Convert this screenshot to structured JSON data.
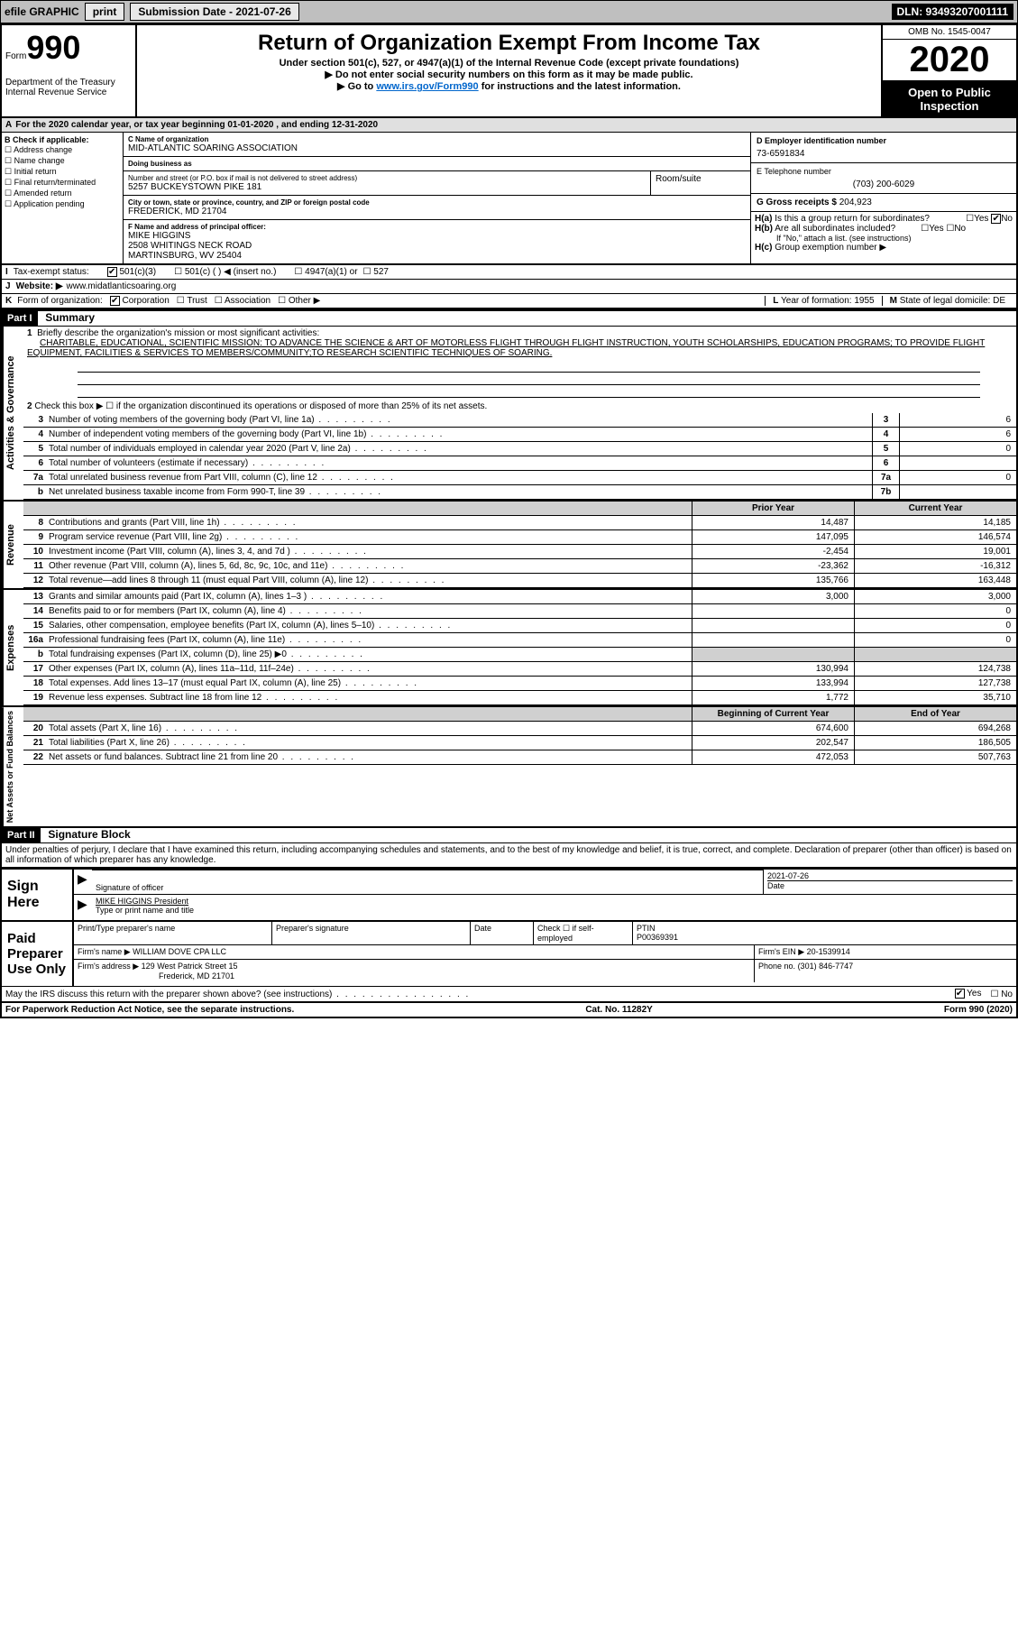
{
  "topbar": {
    "efile": "efile GRAPHIC",
    "print": "print",
    "sub_label": "Submission Date - 2021-07-26",
    "dln": "DLN: 93493207001111"
  },
  "header": {
    "form_word": "Form",
    "form_num": "990",
    "dept": "Department of the Treasury\nInternal Revenue Service",
    "title": "Return of Organization Exempt From Income Tax",
    "sub1": "Under section 501(c), 527, or 4947(a)(1) of the Internal Revenue Code (except private foundations)",
    "sub2": "▶ Do not enter social security numbers on this form as it may be made public.",
    "sub3_pre": "▶ Go to ",
    "sub3_link": "www.irs.gov/Form990",
    "sub3_post": " for instructions and the latest information.",
    "omb": "OMB No. 1545-0047",
    "year": "2020",
    "public1": "Open to Public",
    "public2": "Inspection"
  },
  "rowA": {
    "pre": "A",
    "txt": "For the 2020 calendar year, or tax year beginning 01-01-2020   , and ending 12-31-2020"
  },
  "colB": {
    "hdr": "B Check if applicable:",
    "c1": "Address change",
    "c2": "Name change",
    "c3": "Initial return",
    "c4": "Final return/terminated",
    "c5": "Amended return",
    "c6": "Application pending"
  },
  "colC": {
    "name_lbl": "C Name of organization",
    "name": "MID-ATLANTIC SOARING ASSOCIATION",
    "dba_lbl": "Doing business as",
    "dba": "",
    "addr_lbl": "Number and street (or P.O. box if mail is not delivered to street address)",
    "addr": "5257 BUCKEYSTOWN PIKE 181",
    "room_lbl": "Room/suite",
    "city_lbl": "City or town, state or province, country, and ZIP or foreign postal code",
    "city": "FREDERICK, MD  21704",
    "f_lbl": "F Name and address of principal officer:",
    "f_name": "MIKE HIGGINS",
    "f_addr1": "2508 WHITINGS NECK ROAD",
    "f_addr2": "MARTINSBURG, WV  25404"
  },
  "colD": {
    "d_lbl": "D Employer identification number",
    "d_val": "73-6591834",
    "e_lbl": "E Telephone number",
    "e_val": "(703) 200-6029",
    "g_lbl": "G Gross receipts $",
    "g_val": "204,923",
    "ha_lbl": "H(a)",
    "ha_txt": "Is this a group return for subordinates?",
    "ha_yes": "Yes",
    "ha_no": "No",
    "hb_lbl": "H(b)",
    "hb_txt": "Are all subordinates included?",
    "hb_note": "If \"No,\" attach a list. (see instructions)",
    "hc_lbl": "H(c)",
    "hc_txt": "Group exemption number ▶"
  },
  "rowI": {
    "lbl": "I",
    "txt": "Tax-exempt status:",
    "o1": "501(c)(3)",
    "o2": "501(c) (  ) ◀ (insert no.)",
    "o3": "4947(a)(1) or",
    "o4": "527"
  },
  "rowJ": {
    "lbl": "J",
    "txt": "Website: ▶",
    "val": "www.midatlanticsoaring.org"
  },
  "rowK": {
    "lbl": "K",
    "txt": "Form of organization:",
    "o1": "Corporation",
    "o2": "Trust",
    "o3": "Association",
    "o4": "Other ▶",
    "l_lbl": "L",
    "l_txt": "Year of formation: 1955",
    "m_lbl": "M",
    "m_txt": "State of legal domicile: DE"
  },
  "part1": {
    "hdr": "Part I",
    "title": "Summary",
    "l1_lbl": "1",
    "l1": "Briefly describe the organization's mission or most significant activities:",
    "l1_val": "CHARITABLE, EDUCATIONAL, SCIENTIFIC MISSION: TO ADVANCE THE SCIENCE & ART OF MOTORLESS FLIGHT THROUGH FLIGHT INSTRUCTION, YOUTH SCHOLARSHIPS, EDUCATION PROGRAMS; TO PROVIDE FLIGHT EQUIPMENT, FACILITIES & SERVICES TO MEMBERS/COMMUNITY;TO RESEARCH SCIENTIFIC TECHNIQUES OF SOARING.",
    "l2": "Check this box ▶ ☐ if the organization discontinued its operations or disposed of more than 25% of its net assets.",
    "sideA": "Activities & Governance",
    "sideR": "Revenue",
    "sideE": "Expenses",
    "sideN": "Net Assets or Fund Balances",
    "lines_gov": [
      {
        "n": "3",
        "t": "Number of voting members of the governing body (Part VI, line 1a)",
        "box": "3",
        "v": "6"
      },
      {
        "n": "4",
        "t": "Number of independent voting members of the governing body (Part VI, line 1b)",
        "box": "4",
        "v": "6"
      },
      {
        "n": "5",
        "t": "Total number of individuals employed in calendar year 2020 (Part V, line 2a)",
        "box": "5",
        "v": "0"
      },
      {
        "n": "6",
        "t": "Total number of volunteers (estimate if necessary)",
        "box": "6",
        "v": ""
      },
      {
        "n": "7a",
        "t": "Total unrelated business revenue from Part VIII, column (C), line 12",
        "box": "7a",
        "v": "0"
      },
      {
        "n": "b",
        "t": "Net unrelated business taxable income from Form 990-T, line 39",
        "box": "7b",
        "v": ""
      }
    ],
    "col_py": "Prior Year",
    "col_cy": "Current Year",
    "lines_rev": [
      {
        "n": "8",
        "t": "Contributions and grants (Part VIII, line 1h)",
        "py": "14,487",
        "cy": "14,185"
      },
      {
        "n": "9",
        "t": "Program service revenue (Part VIII, line 2g)",
        "py": "147,095",
        "cy": "146,574"
      },
      {
        "n": "10",
        "t": "Investment income (Part VIII, column (A), lines 3, 4, and 7d )",
        "py": "-2,454",
        "cy": "19,001"
      },
      {
        "n": "11",
        "t": "Other revenue (Part VIII, column (A), lines 5, 6d, 8c, 9c, 10c, and 11e)",
        "py": "-23,362",
        "cy": "-16,312"
      },
      {
        "n": "12",
        "t": "Total revenue—add lines 8 through 11 (must equal Part VIII, column (A), line 12)",
        "py": "135,766",
        "cy": "163,448"
      }
    ],
    "lines_exp": [
      {
        "n": "13",
        "t": "Grants and similar amounts paid (Part IX, column (A), lines 1–3 )",
        "py": "3,000",
        "cy": "3,000"
      },
      {
        "n": "14",
        "t": "Benefits paid to or for members (Part IX, column (A), line 4)",
        "py": "",
        "cy": "0"
      },
      {
        "n": "15",
        "t": "Salaries, other compensation, employee benefits (Part IX, column (A), lines 5–10)",
        "py": "",
        "cy": "0"
      },
      {
        "n": "16a",
        "t": "Professional fundraising fees (Part IX, column (A), line 11e)",
        "py": "",
        "cy": "0"
      },
      {
        "n": "b",
        "t": "Total fundraising expenses (Part IX, column (D), line 25) ▶0",
        "py": "shade",
        "cy": "shade"
      },
      {
        "n": "17",
        "t": "Other expenses (Part IX, column (A), lines 11a–11d, 11f–24e)",
        "py": "130,994",
        "cy": "124,738"
      },
      {
        "n": "18",
        "t": "Total expenses. Add lines 13–17 (must equal Part IX, column (A), line 25)",
        "py": "133,994",
        "cy": "127,738"
      },
      {
        "n": "19",
        "t": "Revenue less expenses. Subtract line 18 from line 12",
        "py": "1,772",
        "cy": "35,710"
      }
    ],
    "col_by": "Beginning of Current Year",
    "col_ey": "End of Year",
    "lines_net": [
      {
        "n": "20",
        "t": "Total assets (Part X, line 16)",
        "py": "674,600",
        "cy": "694,268"
      },
      {
        "n": "21",
        "t": "Total liabilities (Part X, line 26)",
        "py": "202,547",
        "cy": "186,505"
      },
      {
        "n": "22",
        "t": "Net assets or fund balances. Subtract line 21 from line 20",
        "py": "472,053",
        "cy": "507,763"
      }
    ]
  },
  "part2": {
    "hdr": "Part II",
    "title": "Signature Block",
    "perjury": "Under penalties of perjury, I declare that I have examined this return, including accompanying schedules and statements, and to the best of my knowledge and belief, it is true, correct, and complete. Declaration of preparer (other than officer) is based on all information of which preparer has any knowledge.",
    "sign_here": "Sign Here",
    "sig_of": "Signature of officer",
    "sig_date": "2021-07-26",
    "date_lbl": "Date",
    "sig_name": "MIKE HIGGINS President",
    "sig_name_lbl": "Type or print name and title",
    "paid": "Paid Preparer Use Only",
    "p_name_lbl": "Print/Type preparer's name",
    "p_sig_lbl": "Preparer's signature",
    "p_date_lbl": "Date",
    "p_check": "Check ☐ if self-employed",
    "p_ptin_lbl": "PTIN",
    "p_ptin": "P00369391",
    "firm_name_lbl": "Firm's name    ▶",
    "firm_name": "WILLIAM DOVE CPA LLC",
    "firm_ein_lbl": "Firm's EIN ▶",
    "firm_ein": "20-1539914",
    "firm_addr_lbl": "Firm's address ▶",
    "firm_addr1": "129 West Patrick Street 15",
    "firm_addr2": "Frederick, MD  21701",
    "phone_lbl": "Phone no.",
    "phone": "(301) 846-7747",
    "discuss": "May the IRS discuss this return with the preparer shown above? (see instructions)",
    "yes": "Yes",
    "no": "No"
  },
  "footer": {
    "l": "For Paperwork Reduction Act Notice, see the separate instructions.",
    "m": "Cat. No. 11282Y",
    "r": "Form 990 (2020)"
  }
}
